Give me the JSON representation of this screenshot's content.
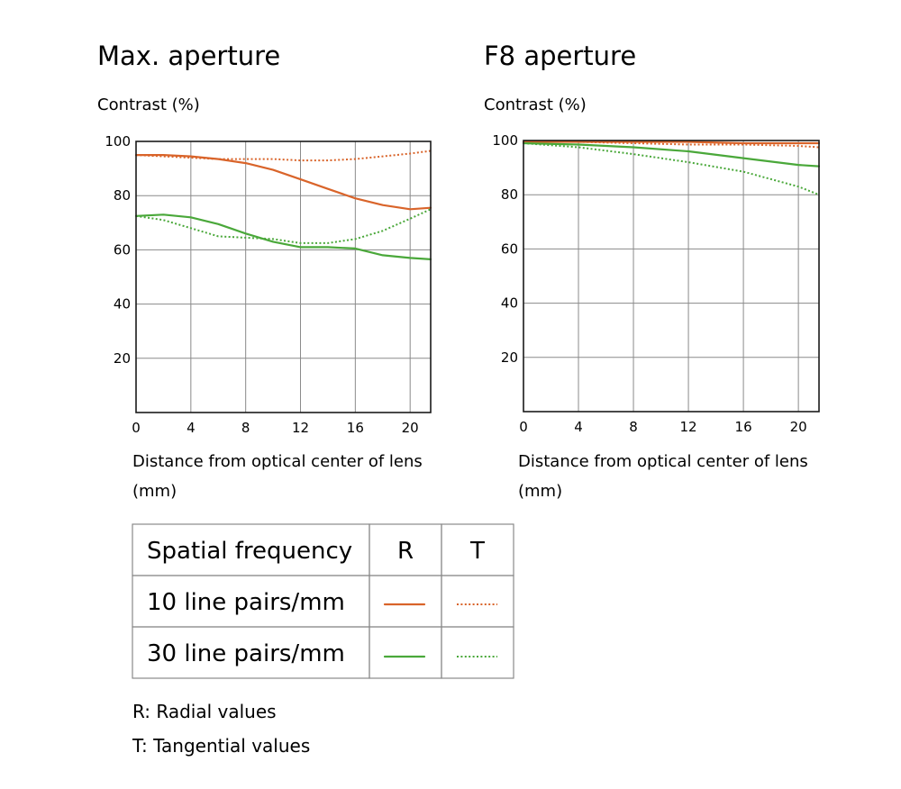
{
  "chart_data": [
    {
      "type": "line",
      "title": "Max. aperture",
      "ylabel": "Contrast (%)",
      "xlabel_lines": [
        "Distance from optical center of lens",
        "(mm)"
      ],
      "xlim": [
        0,
        21.5
      ],
      "ylim": [
        0,
        100
      ],
      "xticks": [
        0,
        4,
        8,
        12,
        16,
        20
      ],
      "yticks": [
        20,
        40,
        60,
        80,
        100
      ],
      "xtick_labels": [
        "0",
        "4",
        "8",
        "12",
        "16",
        "20"
      ],
      "ytick_labels": [
        "20",
        "40",
        "60",
        "80",
        "100"
      ],
      "grid": true,
      "series": [
        {
          "frequency": "10 line pairs/mm",
          "value_type": "R",
          "color": "#d9642a",
          "style": "solid",
          "x": [
            0,
            2,
            4,
            6,
            8,
            10,
            12,
            14,
            16,
            18,
            20,
            21.5
          ],
          "y": [
            95,
            95,
            94.5,
            93.5,
            92,
            89.5,
            86,
            82.5,
            79,
            76.5,
            75,
            75.5
          ]
        },
        {
          "frequency": "10 line pairs/mm",
          "value_type": "T",
          "color": "#d9642a",
          "style": "dotted",
          "x": [
            0,
            2,
            4,
            6,
            8,
            10,
            12,
            14,
            16,
            18,
            20,
            21.5
          ],
          "y": [
            95,
            94.5,
            94,
            93.5,
            93.5,
            93.5,
            93,
            93,
            93.5,
            94.5,
            95.5,
            96.5
          ]
        },
        {
          "frequency": "30 line pairs/mm",
          "value_type": "R",
          "color": "#4aa83a",
          "style": "solid",
          "x": [
            0,
            2,
            4,
            6,
            8,
            10,
            12,
            14,
            16,
            18,
            20,
            21.5
          ],
          "y": [
            72.5,
            73,
            72,
            69.5,
            66,
            63,
            61,
            61,
            60.5,
            58,
            57,
            56.5
          ]
        },
        {
          "frequency": "30 line pairs/mm",
          "value_type": "T",
          "color": "#4aa83a",
          "style": "dotted",
          "x": [
            0,
            2,
            4,
            6,
            8,
            10,
            12,
            14,
            16,
            18,
            20,
            21.5
          ],
          "y": [
            72.5,
            71,
            68,
            65,
            64.5,
            64,
            62.5,
            62.5,
            64,
            67,
            71.5,
            75
          ]
        }
      ]
    },
    {
      "type": "line",
      "title": "F8 aperture",
      "ylabel": "Contrast (%)",
      "xlabel_lines": [
        "Distance from optical center of lens",
        "(mm)"
      ],
      "xlim": [
        0,
        21.5
      ],
      "ylim": [
        0,
        100
      ],
      "xticks": [
        0,
        4,
        8,
        12,
        16,
        20
      ],
      "yticks": [
        20,
        40,
        60,
        80,
        100
      ],
      "xtick_labels": [
        "0",
        "4",
        "8",
        "12",
        "16",
        "20"
      ],
      "ytick_labels": [
        "20",
        "40",
        "60",
        "80",
        "100"
      ],
      "grid": true,
      "series": [
        {
          "frequency": "10 line pairs/mm",
          "value_type": "R",
          "color": "#d9642a",
          "style": "solid",
          "x": [
            0,
            4,
            8,
            12,
            16,
            20,
            21.5
          ],
          "y": [
            99.5,
            99.5,
            99.5,
            99.5,
            99,
            99,
            99
          ]
        },
        {
          "frequency": "10 line pairs/mm",
          "value_type": "T",
          "color": "#d9642a",
          "style": "dotted",
          "x": [
            0,
            4,
            8,
            12,
            16,
            20,
            21.5
          ],
          "y": [
            99.5,
            99.5,
            99,
            98.5,
            98.5,
            98,
            97.5
          ]
        },
        {
          "frequency": "30 line pairs/mm",
          "value_type": "R",
          "color": "#4aa83a",
          "style": "solid",
          "x": [
            0,
            4,
            8,
            12,
            16,
            20,
            21.5
          ],
          "y": [
            99,
            98.5,
            97.5,
            96,
            93.5,
            91,
            90.5
          ]
        },
        {
          "frequency": "30 line pairs/mm",
          "value_type": "T",
          "color": "#4aa83a",
          "style": "dotted",
          "x": [
            0,
            4,
            8,
            12,
            16,
            20,
            21.5
          ],
          "y": [
            99,
            97.5,
            95,
            92,
            88.5,
            83,
            80
          ]
        }
      ]
    }
  ],
  "legend": {
    "header": {
      "label": "Spatial frequency",
      "col_r": "R",
      "col_t": "T"
    },
    "rows": [
      {
        "label": "10 line pairs/mm",
        "color": "#d9642a"
      },
      {
        "label": "30 line pairs/mm",
        "color": "#4aa83a"
      }
    ]
  },
  "notes": [
    "R: Radial values",
    "T: Tangential values"
  ]
}
